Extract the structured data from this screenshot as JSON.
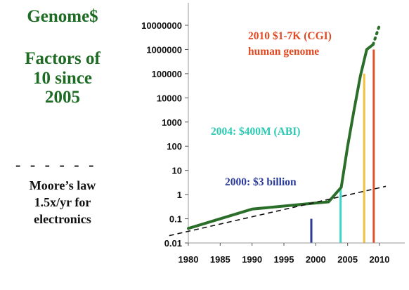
{
  "title": "Genome$",
  "subtitle_lines": [
    "Factors of",
    "10 since",
    "2005"
  ],
  "dash_line": "- - - - - -",
  "legend_lines": [
    "Moore’s law",
    "1.5x/yr for",
    "electronics"
  ],
  "colors": {
    "green_text": "#1e6b24",
    "cost_line": "#2b6e2a",
    "trend_line": "#111111",
    "bar_2000": "#2a3b9a",
    "bar_2004": "#39d6c6",
    "bar_2008": "#f2c23a",
    "bar_2009": "#e0532a",
    "anno_2010": "#e04a22",
    "anno_2004": "#2cc9b3",
    "anno_2000": "#2a3b9a"
  },
  "chart_data": {
    "type": "line",
    "yscale": "log",
    "xlim": [
      1980,
      2010
    ],
    "ylim": [
      0.01,
      10000000
    ],
    "x_ticks": [
      "1980",
      "1985",
      "1990",
      "1995",
      "2000",
      "2005",
      "2010"
    ],
    "y_ticks": [
      "0.01",
      "0.1",
      "1",
      "10",
      "100",
      "1000",
      "10000",
      "100000",
      "1000000",
      "10000000"
    ],
    "grid": false,
    "series": [
      {
        "style": "solid",
        "points": [
          [
            1980,
            0.04
          ],
          [
            1990,
            0.25
          ],
          [
            2000,
            0.45
          ],
          [
            2002,
            0.5
          ],
          [
            2004,
            2
          ],
          [
            2005,
            100
          ],
          [
            2006,
            3000
          ],
          [
            2007,
            80000
          ],
          [
            2008,
            1000000
          ],
          [
            2009,
            1600000
          ]
        ]
      },
      {
        "style": "dotted",
        "points": [
          [
            2009,
            1600000
          ],
          [
            2010,
            10000000
          ]
        ]
      },
      {
        "style": "dashed",
        "points": [
          [
            1977,
            0.02
          ],
          [
            2011,
            2.2
          ]
        ]
      }
    ],
    "bars": [
      {
        "x": 1999.3,
        "value": 0.1,
        "color": "#2a3b9a"
      },
      {
        "x": 2003.9,
        "value": 1.8,
        "color": "#39d6c6"
      },
      {
        "x": 2007.6,
        "value": 100000,
        "color": "#f2c23a"
      },
      {
        "x": 2009.1,
        "value": 1000000,
        "color": "#e0532a"
      }
    ],
    "annotations": [
      {
        "lines": [
          "2010 $1-7K (CGI)",
          "human genome"
        ],
        "color": "#e04a22"
      },
      {
        "lines": [
          "2004: $400M (ABI)"
        ],
        "color": "#2cc9b3"
      },
      {
        "lines": [
          "2000: $3 billion"
        ],
        "color": "#2a3b9a"
      }
    ]
  }
}
